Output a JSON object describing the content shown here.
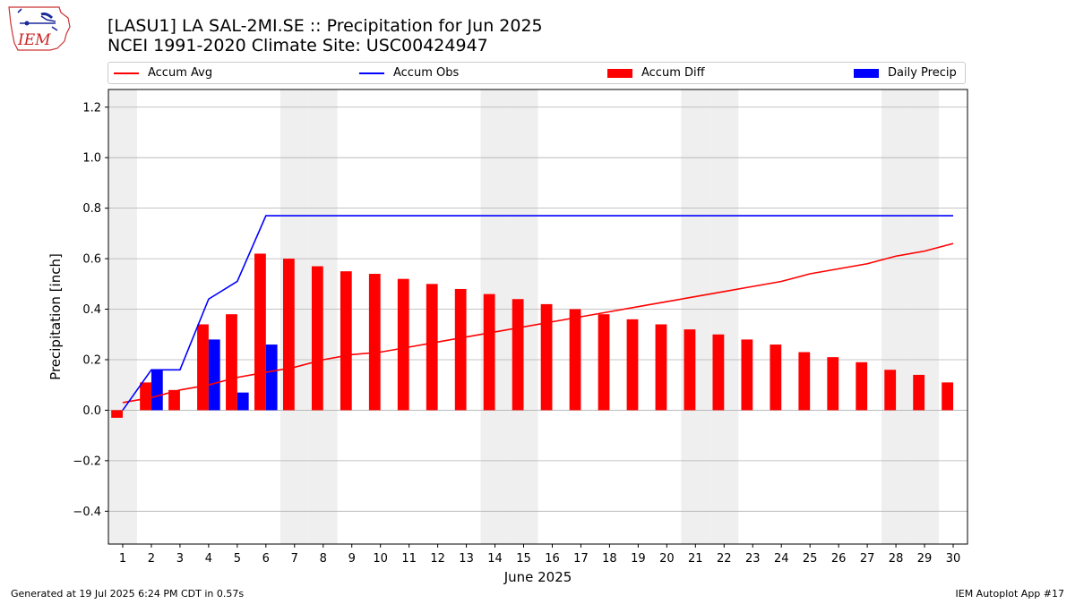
{
  "header": {
    "title_line1": "[LASU1] LA SAL-2MI.SE :: Precipitation for Jun 2025",
    "title_line2": "NCEI 1991-2020 Climate Site: USC00424947",
    "logo_text": "IEM"
  },
  "footer": {
    "left": "Generated at 19 Jul 2025 6:24 PM CDT in 0.57s",
    "right": "IEM Autoplot App #17"
  },
  "colors": {
    "accum_avg": "#ff0000",
    "accum_obs": "#0000ff",
    "accum_diff": "#ff0000",
    "daily_precip": "#0000ff",
    "weekend_shade": "#efefef",
    "grid": "#b0b0b0"
  },
  "chart_data": {
    "type": "bar",
    "xlabel": "June 2025",
    "ylabel": "Precipitation [inch]",
    "ylim": [
      -0.53,
      1.27
    ],
    "xlim": [
      0.5,
      30.5
    ],
    "yticks": [
      -0.4,
      -0.2,
      0.0,
      0.2,
      0.4,
      0.6,
      0.8,
      1.0,
      1.2
    ],
    "ytick_labels": [
      "−0.4",
      "−0.2",
      "0.0",
      "0.2",
      "0.4",
      "0.6",
      "0.8",
      "1.0",
      "1.2"
    ],
    "grid": "horizontal",
    "legend_position": "top",
    "days": [
      1,
      2,
      3,
      4,
      5,
      6,
      7,
      8,
      9,
      10,
      11,
      12,
      13,
      14,
      15,
      16,
      17,
      18,
      19,
      20,
      21,
      22,
      23,
      24,
      25,
      26,
      27,
      28,
      29,
      30
    ],
    "x_tick_labels": [
      "1",
      "2",
      "3",
      "4",
      "5",
      "6",
      "7",
      "8",
      "9",
      "10",
      "11",
      "12",
      "13",
      "14",
      "15",
      "16",
      "17",
      "18",
      "19",
      "20",
      "21",
      "22",
      "23",
      "24",
      "25",
      "26",
      "27",
      "28",
      "29",
      "30"
    ],
    "weekend_days": [
      1,
      7,
      8,
      14,
      15,
      21,
      22,
      28,
      29
    ],
    "series": [
      {
        "name": "Accum Avg",
        "kind": "line",
        "color": "#ff0000",
        "values": [
          0.03,
          0.05,
          0.08,
          0.1,
          0.13,
          0.15,
          0.17,
          0.2,
          0.22,
          0.23,
          0.25,
          0.27,
          0.29,
          0.31,
          0.33,
          0.35,
          0.37,
          0.39,
          0.41,
          0.43,
          0.45,
          0.47,
          0.49,
          0.51,
          0.54,
          0.56,
          0.58,
          0.61,
          0.63,
          0.66
        ]
      },
      {
        "name": "Accum Obs",
        "kind": "line",
        "color": "#0000ff",
        "values": [
          0.0,
          0.16,
          0.16,
          0.44,
          0.51,
          0.77,
          0.77,
          0.77,
          0.77,
          0.77,
          0.77,
          0.77,
          0.77,
          0.77,
          0.77,
          0.77,
          0.77,
          0.77,
          0.77,
          0.77,
          0.77,
          0.77,
          0.77,
          0.77,
          0.77,
          0.77,
          0.77,
          0.77,
          0.77,
          0.77
        ]
      },
      {
        "name": "Accum Diff",
        "kind": "bar",
        "color": "#ff0000",
        "values": [
          -0.03,
          0.11,
          0.08,
          0.34,
          0.38,
          0.62,
          0.6,
          0.57,
          0.55,
          0.54,
          0.52,
          0.5,
          0.48,
          0.46,
          0.44,
          0.42,
          0.4,
          0.38,
          0.36,
          0.34,
          0.32,
          0.3,
          0.28,
          0.26,
          0.23,
          0.21,
          0.19,
          0.16,
          0.14,
          0.11
        ]
      },
      {
        "name": "Daily Precip",
        "kind": "bar",
        "color": "#0000ff",
        "values": [
          0.0,
          0.16,
          0.0,
          0.28,
          0.07,
          0.26,
          0,
          0,
          0,
          0,
          0,
          0,
          0,
          0,
          0,
          0,
          0,
          0,
          0,
          0,
          0,
          0,
          0,
          0,
          0,
          0,
          0,
          0,
          0,
          0
        ]
      }
    ]
  }
}
